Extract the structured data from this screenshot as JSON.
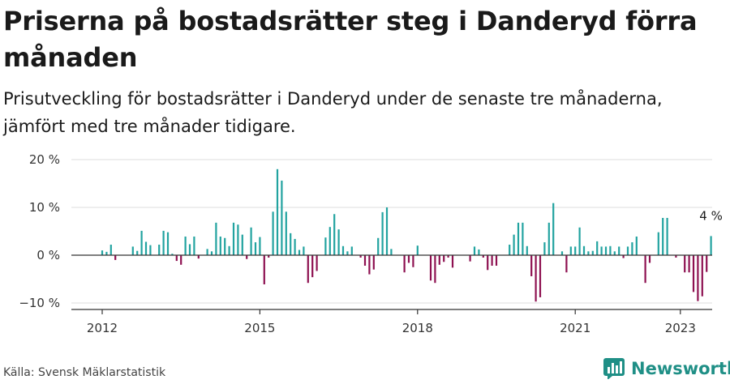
{
  "header": {
    "title": "Priserna på bostadsrätter steg i Danderyd förra månaden",
    "subtitle": "Prisutveckling för bostadsrätter i Danderyd under de senaste tre månaderna, jämfört med tre månader tidigare."
  },
  "footer": {
    "source": "Källa: Svensk Mäklarstatistik",
    "brand": "Newsworthy"
  },
  "colors": {
    "positive": "#22a3a0",
    "negative": "#8e1151",
    "brand": "#1f8f86"
  },
  "chart_data": {
    "type": "bar",
    "x_start": "2012-01",
    "y_unit": "%",
    "ylim": [
      -11,
      21
    ],
    "yticks": [
      20,
      10,
      0,
      -10
    ],
    "ytick_labels": [
      "20 %",
      "10 %",
      "0 %",
      "−10 %"
    ],
    "xticks": [
      "2012",
      "2015",
      "2018",
      "2021",
      "2023"
    ],
    "grid": true,
    "annotation": "4 %",
    "values": [
      1,
      0.7,
      2.2,
      -1,
      0,
      0,
      0,
      1.8,
      0.9,
      5.1,
      2.8,
      2.1,
      0,
      2.2,
      5.1,
      4.8,
      0.3,
      -1.2,
      -2,
      3.9,
      2.3,
      3.9,
      -0.7,
      0,
      1.3,
      0.8,
      6.8,
      3.9,
      3.6,
      1.9,
      6.8,
      6.4,
      4.3,
      -0.8,
      5.8,
      2.7,
      3.8,
      -6.1,
      -0.5,
      9.1,
      18,
      15.6,
      9.1,
      4.6,
      3.4,
      1.1,
      1.8,
      -5.8,
      -4.6,
      -3.3,
      0,
      3.7,
      5.9,
      8.6,
      5.4,
      1.9,
      0.8,
      1.8,
      0,
      -0.5,
      -2.2,
      -4,
      -3,
      3.6,
      9,
      10,
      1.3,
      0,
      0,
      -3.6,
      -1.6,
      -2.5,
      2,
      0,
      0,
      -5.3,
      -5.8,
      -2,
      -1.4,
      -0.5,
      -2.6,
      0,
      0,
      0,
      -1.3,
      1.8,
      1.2,
      -0.5,
      -3.1,
      -2.2,
      -2.2,
      0,
      0,
      2.2,
      4.3,
      6.8,
      6.8,
      1.9,
      -4.4,
      -9.7,
      -8.8,
      2.7,
      6.8,
      10.9,
      0,
      0.8,
      -3.6,
      1.8,
      1.8,
      5.8,
      1.9,
      0.8,
      0.9,
      2.9,
      1.8,
      1.8,
      1.9,
      0.8,
      1.8,
      -0.6,
      1.8,
      2.7,
      3.9,
      0,
      -5.8,
      -1.6,
      0,
      4.8,
      7.8,
      7.8,
      0,
      -0.5,
      0,
      -3.6,
      -3.6,
      -7.7,
      -9.6,
      -8.6,
      -3.5,
      4
    ]
  }
}
